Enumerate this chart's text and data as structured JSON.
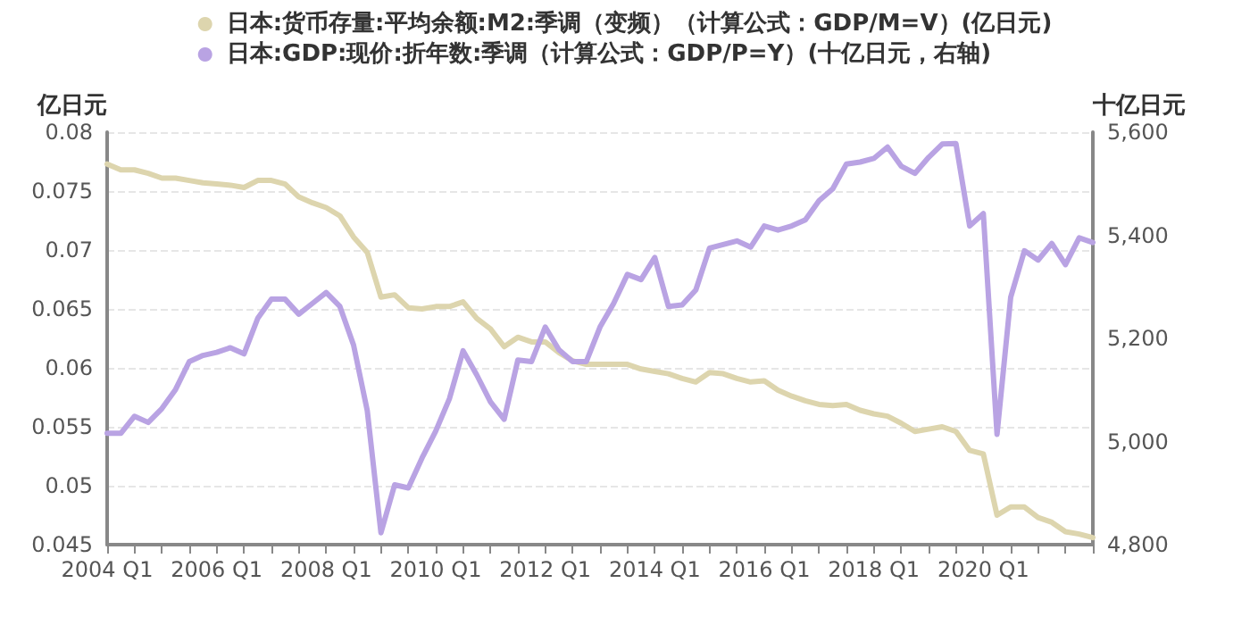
{
  "chart_data": {
    "type": "line",
    "ylabel": "亿日元",
    "y2label": "十亿日元",
    "categories": [
      "2004 Q1",
      null,
      null,
      null,
      null,
      null,
      null,
      null,
      "2006 Q1",
      null,
      null,
      null,
      null,
      null,
      null,
      null,
      "2008 Q1",
      null,
      null,
      null,
      null,
      null,
      null,
      null,
      "2010 Q1",
      null,
      null,
      null,
      null,
      null,
      null,
      null,
      "2012 Q1",
      null,
      null,
      null,
      null,
      null,
      null,
      null,
      "2014 Q1",
      null,
      null,
      null,
      null,
      null,
      null,
      null,
      "2016 Q1",
      null,
      null,
      null,
      null,
      null,
      null,
      null,
      "2018 Q1",
      null,
      null,
      null,
      null,
      null,
      null,
      null,
      "2020 Q1",
      null,
      null,
      null,
      null,
      null,
      null,
      null,
      null
    ],
    "series": [
      {
        "name": "日本:货币存量:平均余额:M2:季调（变频）（计算公式：GDP/M=V）(亿日元)",
        "color": "#ddd5ae",
        "values": [
          0.0773,
          0.0768,
          0.0768,
          0.0765,
          0.0761,
          0.0761,
          0.0759,
          0.0757,
          0.0756,
          0.0755,
          0.0753,
          0.0759,
          0.0759,
          0.0756,
          0.0745,
          0.074,
          0.0736,
          0.0729,
          0.0711,
          0.0698,
          0.066,
          0.0662,
          0.0651,
          0.065,
          0.0652,
          0.0652,
          0.0656,
          0.0642,
          0.0633,
          0.0618,
          0.0626,
          0.0622,
          0.0622,
          0.0613,
          0.0606,
          0.0603,
          0.0603,
          0.0603,
          0.0603,
          0.0599,
          0.0597,
          0.0595,
          0.0591,
          0.0588,
          0.0596,
          0.0595,
          0.0591,
          0.0588,
          0.0589,
          0.0581,
          0.0576,
          0.0572,
          0.0569,
          0.0568,
          0.0569,
          0.0564,
          0.0561,
          0.0559,
          0.0553,
          0.0546,
          0.0548,
          0.055,
          0.0546,
          0.053,
          0.0527,
          0.0475,
          0.0482,
          0.0482,
          0.0473,
          0.0469,
          0.0461,
          0.0459,
          0.0456
        ]
      },
      {
        "name": "日本:GDP:现价:折年数:季调（计算公式：GDP/P=Y）(十亿日元，右轴)",
        "color": "#b9a3e3",
        "axis": "y2",
        "values": [
          5016,
          5016,
          5049,
          5037,
          5064,
          5101,
          5155,
          5167,
          5173,
          5182,
          5170,
          5239,
          5276,
          5276,
          5247,
          5268,
          5289,
          5262,
          5187,
          5060,
          4823,
          4916,
          4910,
          4968,
          5020,
          5083,
          5176,
          5129,
          5077,
          5043,
          5158,
          5155,
          5222,
          5178,
          5155,
          5155,
          5222,
          5268,
          5324,
          5314,
          5357,
          5262,
          5265,
          5294,
          5375,
          5382,
          5389,
          5377,
          5418,
          5410,
          5418,
          5430,
          5467,
          5490,
          5538,
          5542,
          5549,
          5571,
          5534,
          5520,
          5551,
          5577,
          5578,
          5418,
          5442,
          5014,
          5280,
          5370,
          5352,
          5384,
          5343,
          5395,
          5386
        ]
      }
    ],
    "ylim": [
      0.045,
      0.08
    ],
    "yticks": [
      0.045,
      0.05,
      0.055,
      0.06,
      0.065,
      0.07,
      0.075,
      0.08
    ],
    "y2lim": [
      4800,
      5600
    ],
    "y2ticks": [
      {
        "value": 4800,
        "label": "4,800"
      },
      {
        "value": 5000,
        "label": "5,000"
      },
      {
        "value": 5200,
        "label": "5,200"
      },
      {
        "value": 5400,
        "label": "5,400"
      },
      {
        "value": 5600,
        "label": "5,600"
      }
    ],
    "grid": "y",
    "legend": "top",
    "marker": "none",
    "line_style": "solid"
  }
}
